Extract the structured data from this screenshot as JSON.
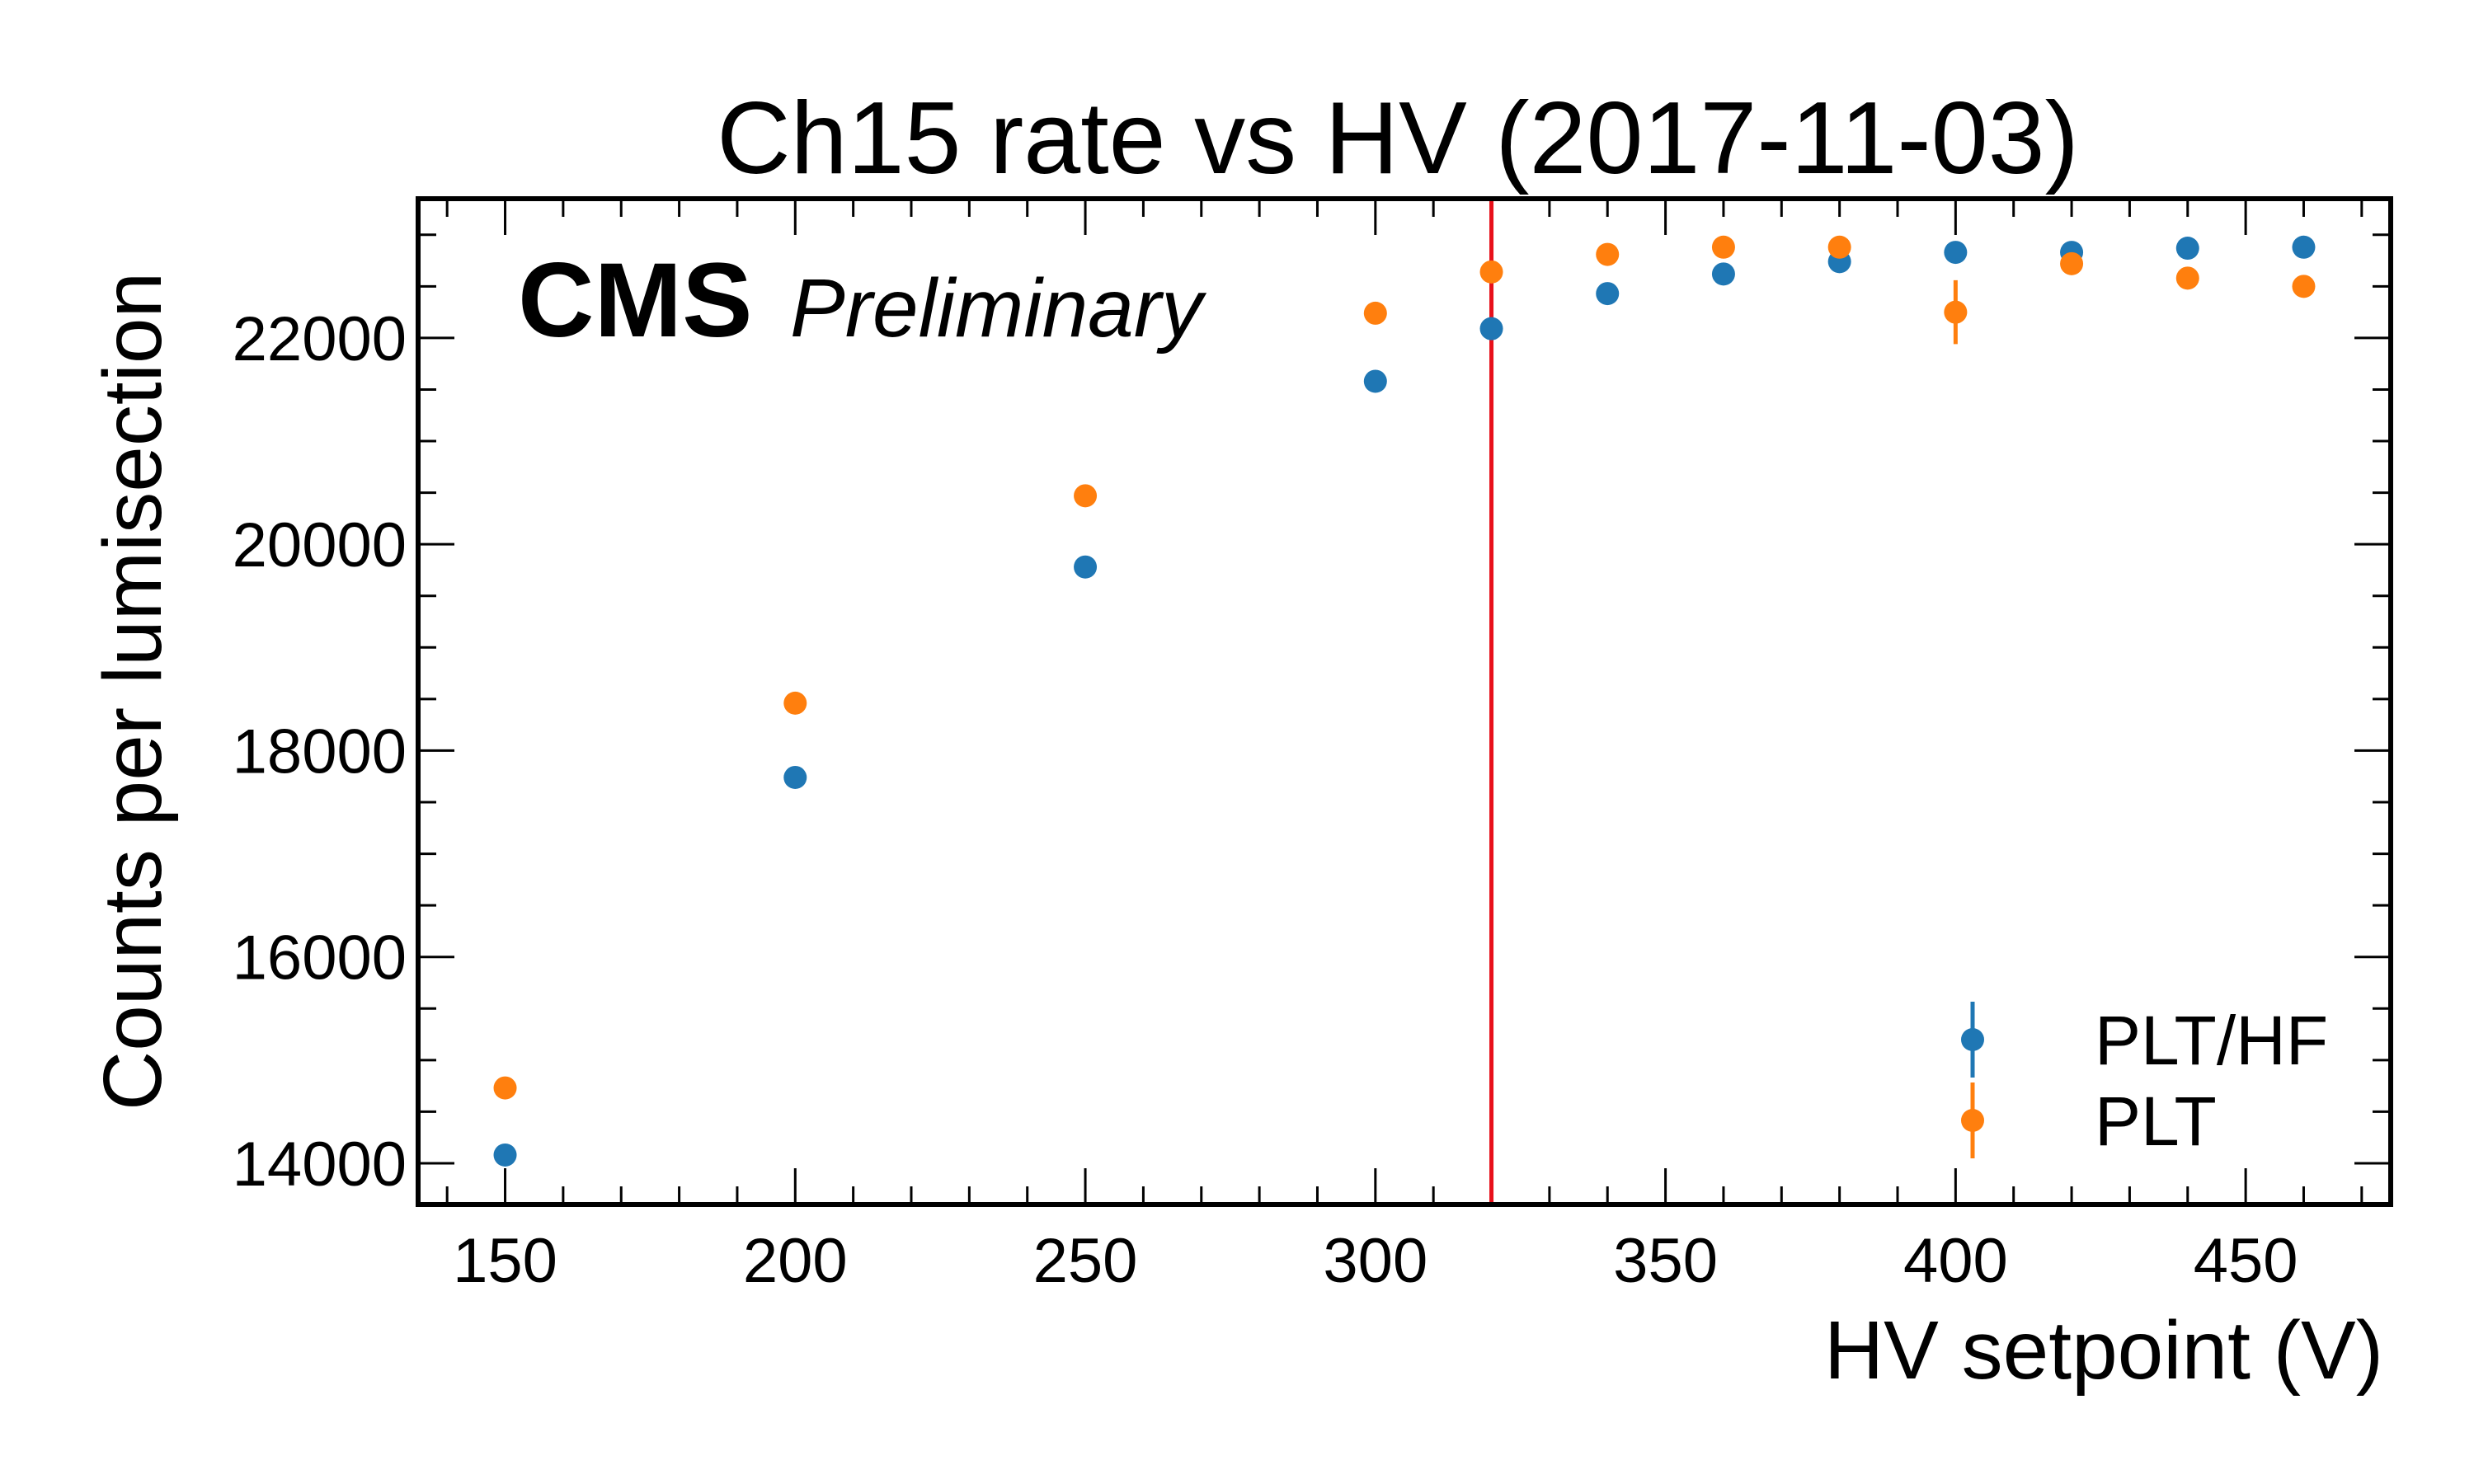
{
  "chart_data": {
    "type": "scatter",
    "title": "Ch15 rate vs HV (2017-11-03)",
    "experiment_label": "CMS",
    "status_label": "Preliminary",
    "xlabel": "HV setpoint (V)",
    "ylabel": "Counts per lumisection",
    "xlim": [
      135,
      475
    ],
    "ylim": [
      13600,
      23350
    ],
    "x_ticks": [
      150,
      200,
      250,
      300,
      350,
      400,
      450
    ],
    "y_ticks": [
      14000,
      16000,
      18000,
      20000,
      22000
    ],
    "x_minor_step": 10,
    "y_minor_step": 500,
    "grid": false,
    "legend_position": "lower-right",
    "reference_line": {
      "x": 320,
      "color": "#e8101a"
    },
    "series": [
      {
        "name": "PLT/HF",
        "color": "#1f77b4",
        "points": [
          {
            "x": 150,
            "y": 14080,
            "yerr": 0
          },
          {
            "x": 200,
            "y": 17740,
            "yerr": 0
          },
          {
            "x": 250,
            "y": 19780,
            "yerr": 0
          },
          {
            "x": 300,
            "y": 21580,
            "yerr": 0
          },
          {
            "x": 320,
            "y": 22090,
            "yerr": 0
          },
          {
            "x": 340,
            "y": 22430,
            "yerr": 0
          },
          {
            "x": 360,
            "y": 22620,
            "yerr": 0
          },
          {
            "x": 380,
            "y": 22740,
            "yerr": 0
          },
          {
            "x": 400,
            "y": 22830,
            "yerr": 0
          },
          {
            "x": 420,
            "y": 22830,
            "yerr": 0
          },
          {
            "x": 440,
            "y": 22870,
            "yerr": 0
          },
          {
            "x": 460,
            "y": 22880,
            "yerr": 0
          }
        ]
      },
      {
        "name": "PLT",
        "color": "#ff7f0e",
        "points": [
          {
            "x": 150,
            "y": 14730,
            "yerr": 0
          },
          {
            "x": 200,
            "y": 18460,
            "yerr": 0
          },
          {
            "x": 250,
            "y": 20470,
            "yerr": 0
          },
          {
            "x": 300,
            "y": 22240,
            "yerr": 0
          },
          {
            "x": 320,
            "y": 22640,
            "yerr": 0
          },
          {
            "x": 340,
            "y": 22810,
            "yerr": 0
          },
          {
            "x": 360,
            "y": 22880,
            "yerr": 0
          },
          {
            "x": 380,
            "y": 22880,
            "yerr": 0
          },
          {
            "x": 400,
            "y": 22250,
            "yerr": 310
          },
          {
            "x": 420,
            "y": 22720,
            "yerr": 0
          },
          {
            "x": 440,
            "y": 22580,
            "yerr": 0
          },
          {
            "x": 460,
            "y": 22500,
            "yerr": 0
          }
        ]
      }
    ]
  }
}
